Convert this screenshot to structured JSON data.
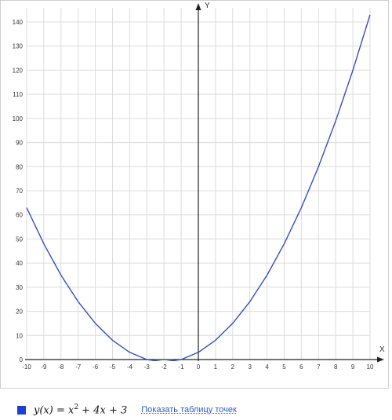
{
  "chart_data": {
    "type": "line",
    "xlabel": "X",
    "ylabel": "Y",
    "xlim": [
      -10,
      10
    ],
    "ylim": [
      0,
      140
    ],
    "x_ticks": [
      -10,
      -9,
      -8,
      -7,
      -6,
      -5,
      -4,
      -3,
      -2,
      -1,
      0,
      1,
      2,
      3,
      4,
      5,
      6,
      7,
      8,
      9,
      10
    ],
    "y_ticks": [
      0,
      10,
      20,
      30,
      40,
      50,
      60,
      70,
      80,
      90,
      100,
      110,
      120,
      130,
      140
    ],
    "grid": true,
    "series": [
      {
        "color": "#3050c0",
        "x": [
          -10,
          -9,
          -8,
          -7,
          -6,
          -5,
          -4,
          -3,
          -2,
          -1,
          0,
          1,
          2,
          3,
          4,
          5,
          6,
          7,
          8,
          9,
          10
        ],
        "y": [
          63,
          48,
          35,
          24,
          15,
          8,
          3,
          0,
          -1,
          0,
          3,
          8,
          15,
          24,
          35,
          48,
          63,
          80,
          99,
          120,
          143
        ]
      }
    ]
  },
  "legend": {
    "swatch_color": "#1f3fcf",
    "formula_lhs": "y(x) = x",
    "formula_exp": "2",
    "formula_rhs": " + 4x + 3",
    "link_label": "Показать таблицу точек"
  }
}
